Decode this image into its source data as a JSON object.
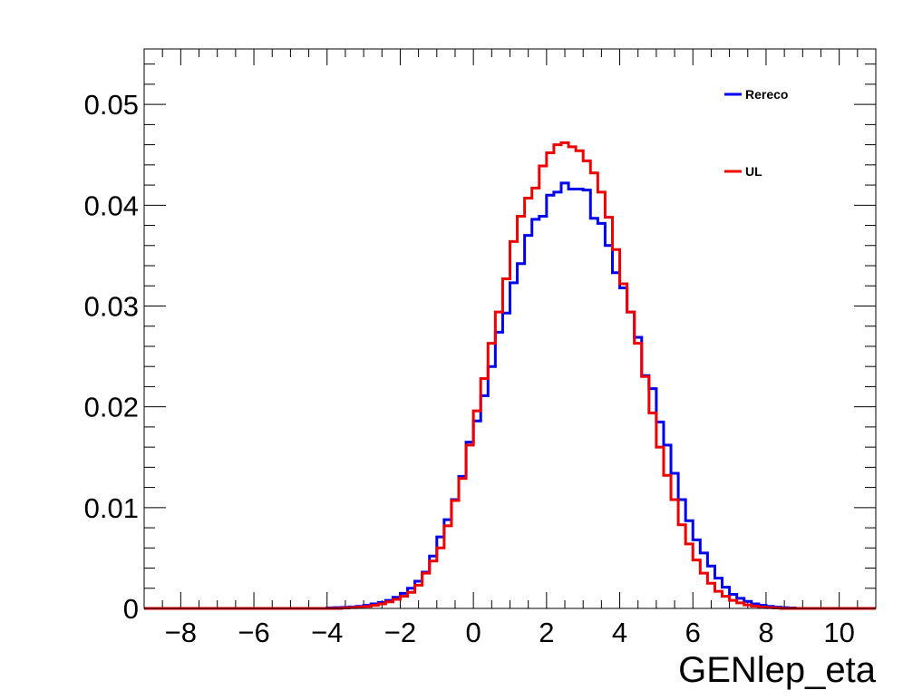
{
  "chart_data": {
    "type": "line",
    "title": "",
    "xlabel": "GENlep_eta",
    "ylabel": "",
    "xlim": [
      -9,
      11
    ],
    "ylim": [
      0,
      0.0555
    ],
    "x_ticks": [
      -8,
      -6,
      -4,
      -2,
      0,
      2,
      4,
      6,
      8,
      10
    ],
    "x_tick_labels": [
      "−8",
      "−6",
      "−4",
      "−2",
      "0",
      "2",
      "4",
      "6",
      "8",
      "10"
    ],
    "y_ticks": [
      0,
      0.01,
      0.02,
      0.03,
      0.04,
      0.05
    ],
    "y_tick_labels": [
      "0",
      "0.01",
      "0.02",
      "0.03",
      "0.04",
      "0.05"
    ],
    "grid": false,
    "legend_position": "top-right",
    "bin_edges_start": -9,
    "bin_width": 0.2,
    "series": [
      {
        "name": "Rereco",
        "color": "#0000ee",
        "values": [
          0,
          0,
          0,
          0,
          0,
          0,
          0,
          0,
          0,
          0,
          0,
          0,
          0,
          0,
          0,
          0,
          0,
          0,
          0,
          0,
          0,
          0,
          0,
          0,
          0,
          6e-05,
          8e-05,
          0.0001,
          0.00015,
          0.0002,
          0.0003,
          0.00045,
          0.0006,
          0.0008,
          0.0011,
          0.0015,
          0.002,
          0.0027,
          0.0036,
          0.0052,
          0.0071,
          0.0088,
          0.0108,
          0.0131,
          0.0165,
          0.0186,
          0.0211,
          0.024,
          0.0274,
          0.0293,
          0.0323,
          0.0342,
          0.037,
          0.0386,
          0.0389,
          0.041,
          0.0413,
          0.0422,
          0.0416,
          0.0416,
          0.0415,
          0.0387,
          0.0382,
          0.036,
          0.0333,
          0.0318,
          0.0294,
          0.0269,
          0.0231,
          0.0218,
          0.0185,
          0.0162,
          0.0134,
          0.0108,
          0.0087,
          0.0068,
          0.0055,
          0.0042,
          0.003,
          0.0021,
          0.0014,
          0.001,
          0.0007,
          0.00045,
          0.0003,
          0.0002,
          0.00012,
          8e-05,
          5e-05,
          0,
          0,
          0,
          0,
          0,
          0,
          0,
          0,
          0,
          0,
          0
        ]
      },
      {
        "name": "UL",
        "color": "#ee0000",
        "values": [
          0,
          0,
          0,
          0,
          0,
          0,
          0,
          0,
          0,
          0,
          0,
          0,
          0,
          0,
          0,
          0,
          0,
          0,
          0,
          0,
          0,
          0,
          0,
          0,
          0,
          0,
          0,
          5e-05,
          8e-05,
          0.00012,
          0.0002,
          0.0003,
          0.00045,
          0.00065,
          0.0009,
          0.0012,
          0.0016,
          0.0023,
          0.0035,
          0.0047,
          0.006,
          0.0082,
          0.0107,
          0.0129,
          0.0162,
          0.0196,
          0.0228,
          0.0263,
          0.0294,
          0.0327,
          0.0364,
          0.0389,
          0.0407,
          0.0417,
          0.0439,
          0.0452,
          0.046,
          0.0462,
          0.0458,
          0.0454,
          0.0444,
          0.0432,
          0.0413,
          0.0388,
          0.0356,
          0.0322,
          0.0294,
          0.0263,
          0.023,
          0.0194,
          0.016,
          0.0132,
          0.0108,
          0.0083,
          0.0064,
          0.0048,
          0.0035,
          0.0025,
          0.0017,
          0.0012,
          0.0008,
          0.00055,
          0.00035,
          0.00022,
          0.00014,
          8e-05,
          5e-05,
          0,
          0,
          0,
          0,
          0,
          0,
          0,
          0,
          0,
          0,
          0,
          0,
          0
        ]
      }
    ]
  }
}
